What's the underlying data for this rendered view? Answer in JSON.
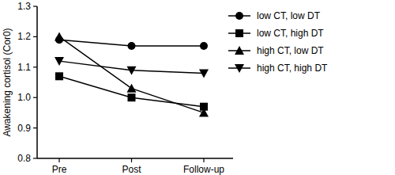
{
  "chart_data": {
    "type": "line",
    "y_label": "Awakening cortisol (Cor0)",
    "categories": [
      "Pre",
      "Post",
      "Follow-up"
    ],
    "series": [
      {
        "name": "low CT, low DT",
        "color": "#000000",
        "marker": "circle",
        "values": [
          1.19,
          1.17,
          1.17
        ]
      },
      {
        "name": "low CT, high DT",
        "color": "#000000",
        "marker": "square",
        "values": [
          1.07,
          1.0,
          0.97
        ]
      },
      {
        "name": "high CT, low DT",
        "color": "#000000",
        "marker": "triangle",
        "values": [
          1.2,
          1.03,
          0.95
        ]
      },
      {
        "name": "high CT, high DT",
        "color": "#000000",
        "marker": "triangle-down",
        "values": [
          1.12,
          1.09,
          1.08
        ]
      }
    ],
    "ylim": [
      0.8,
      1.3
    ],
    "yticks": [
      0.8,
      0.9,
      {
        "value": 1,
        "label": "1.0"
      },
      1.1,
      1.2,
      1.3
    ],
    "grid": false,
    "legend": "top-right"
  }
}
